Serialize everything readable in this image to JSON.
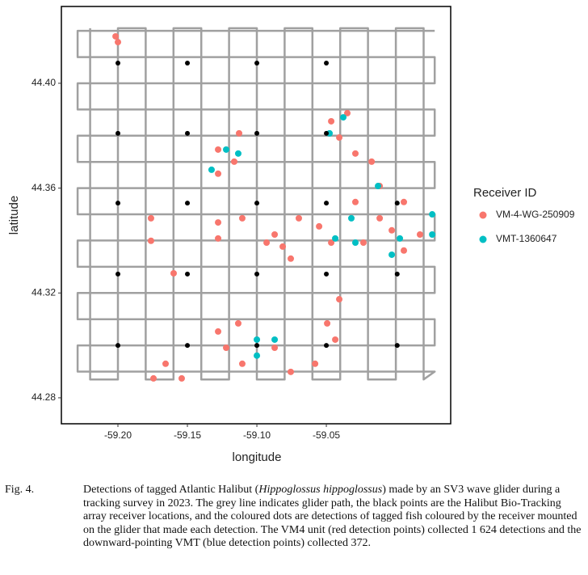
{
  "chart_data": {
    "type": "scatter",
    "xlabel": "longitude",
    "ylabel": "latitude",
    "xlim": [
      -59.2407,
      -58.9605
    ],
    "ylim": [
      44.2701,
      44.4293
    ],
    "xticks": [
      {
        "value": -59.2,
        "label": "-59.20"
      },
      {
        "value": -59.15,
        "label": "-59.15"
      },
      {
        "value": -59.1,
        "label": "-59.10"
      },
      {
        "value": -59.05,
        "label": "-59.05"
      }
    ],
    "yticks": [
      44.28,
      44.32,
      44.36,
      {
        "value": 44.4,
        "label": "44.40"
      }
    ],
    "legend_title": "Receiver ID",
    "legend_position": "right",
    "glider_path": {
      "color": "#a0a0a0",
      "x": [
        -59.22,
        -59.22,
        -59.2,
        -59.2,
        -59.18,
        -59.18,
        -59.16,
        -59.16,
        -59.14,
        -59.14,
        -59.12,
        -59.12,
        -59.1,
        -59.1,
        -59.08,
        -59.08,
        -59.06,
        -59.06,
        -59.04,
        -59.04,
        -59.02,
        -59.02,
        -59.0,
        -59.0,
        -58.98,
        -58.98,
        -58.972,
        -59.229,
        -59.229,
        -58.972,
        -58.972,
        -59.229,
        -59.229,
        -58.972,
        -58.972,
        -59.229,
        -59.229,
        -58.972,
        -58.972,
        -59.229,
        -59.229,
        -58.972,
        -58.972,
        -59.229,
        -59.229,
        -58.972,
        -58.972,
        -59.229,
        -59.229,
        -58.972,
        -58.972,
        -59.229,
        -59.229,
        -58.972
      ],
      "y": [
        44.421,
        44.287,
        44.287,
        44.421,
        44.421,
        44.287,
        44.287,
        44.421,
        44.421,
        44.287,
        44.287,
        44.421,
        44.421,
        44.287,
        44.287,
        44.421,
        44.421,
        44.287,
        44.287,
        44.421,
        44.421,
        44.287,
        44.287,
        44.421,
        44.421,
        44.287,
        44.29,
        44.29,
        44.3,
        44.3,
        44.31,
        44.31,
        44.32,
        44.32,
        44.33,
        44.33,
        44.34,
        44.34,
        44.35,
        44.35,
        44.36,
        44.36,
        44.37,
        44.37,
        44.38,
        44.38,
        44.39,
        44.39,
        44.4,
        44.4,
        44.41,
        44.41,
        44.42,
        44.42
      ]
    },
    "receivers": {
      "color": "#000000",
      "x": [
        -59.2,
        -59.15,
        -59.1,
        -59.05,
        -59.2,
        -59.15,
        -59.1,
        -59.05,
        -59.2,
        -59.15,
        -59.1,
        -59.05,
        -58.999,
        -59.2,
        -59.15,
        -59.1,
        -59.05,
        -58.999,
        -59.2,
        -59.15,
        -59.1,
        -59.05,
        -58.999
      ],
      "y": [
        44.4077,
        44.4077,
        44.4077,
        44.4077,
        44.3809,
        44.3809,
        44.3809,
        44.3809,
        44.3543,
        44.3543,
        44.3543,
        44.3543,
        44.3543,
        44.3272,
        44.3272,
        44.3272,
        44.3272,
        44.3272,
        44.3,
        44.3,
        44.3,
        44.3,
        44.3
      ]
    },
    "series": [
      {
        "name": "VM-4-WG-250909",
        "color": "#f8766d",
        "x": [
          -59.2017,
          -59.2,
          -59.1279,
          -59.1163,
          -59.1279,
          -59.1128,
          -59.1762,
          -59.1762,
          -59.1279,
          -59.1279,
          -59.1105,
          -59.0698,
          -59.1599,
          -59.0814,
          -59.093,
          -59.0756,
          -59.0872,
          -59.0552,
          -59.0465,
          -59.0291,
          -59.0174,
          -59.0116,
          -58.9942,
          -59.0116,
          -58.9826,
          -59.0233,
          -58.9942,
          -59.0291,
          -59.0029,
          -59.0465,
          -59.0349,
          -59.0407,
          -59.0407,
          -59.0494,
          -59.0436,
          -59.1279,
          -59.1134,
          -59.1105,
          -59.1221,
          -59.0872,
          -59.0756,
          -59.0581,
          -59.1657,
          -59.1744,
          -59.1541
        ],
        "y": [
          44.4179,
          44.4157,
          44.3747,
          44.3701,
          44.3655,
          44.3809,
          44.3485,
          44.3399,
          44.3469,
          44.3408,
          44.3485,
          44.3485,
          44.3275,
          44.3377,
          44.3392,
          44.3331,
          44.3423,
          44.3454,
          44.3392,
          44.3732,
          44.3701,
          44.3608,
          44.3547,
          44.3485,
          44.3423,
          44.3392,
          44.3362,
          44.3547,
          44.3439,
          44.3855,
          44.3886,
          44.3793,
          44.3176,
          44.3084,
          44.3022,
          44.3053,
          44.3084,
          44.293,
          44.2991,
          44.2991,
          44.2899,
          44.293,
          44.293,
          44.2874,
          44.2874
        ]
      },
      {
        "name": "VMT-1360647",
        "color": "#00bfc4",
        "x": [
          -59.1326,
          -59.1221,
          -59.1134,
          -59.0477,
          -59.0378,
          -59.0128,
          -59.032,
          -59.0436,
          -59.0291,
          -58.9738,
          -58.9738,
          -58.9971,
          -59.0029,
          -59.1,
          -59.1,
          -59.0872
        ],
        "y": [
          44.367,
          44.3747,
          44.3732,
          44.3809,
          44.387,
          44.3608,
          44.3485,
          44.3408,
          44.3392,
          44.35,
          44.3423,
          44.3408,
          44.3346,
          44.3022,
          44.2961,
          44.3022
        ]
      }
    ]
  },
  "caption": {
    "label": "Fig. 4.",
    "text_before": "Detections of tagged Atlantic Halibut (",
    "species": "Hippoglossus hippoglossus",
    "text_after": ") made by an SV3 wave glider during a tracking survey in 2023. The grey line indicates glider path, the black points are the Halibut Bio-Tracking array receiver locations, and the coloured dots are detections of tagged fish coloured by the receiver mounted on the glider that made each detection. The VM4 unit (red detection points) collected 1 624 detections and the downward-pointing VMT (blue detection points) collected 372."
  }
}
